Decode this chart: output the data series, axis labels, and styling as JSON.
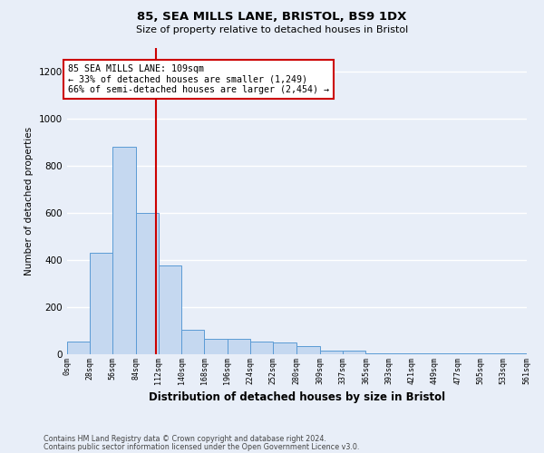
{
  "title1": "85, SEA MILLS LANE, BRISTOL, BS9 1DX",
  "title2": "Size of property relative to detached houses in Bristol",
  "xlabel": "Distribution of detached houses by size in Bristol",
  "ylabel": "Number of detached properties",
  "annotation_line1": "85 SEA MILLS LANE: 109sqm",
  "annotation_line2": "← 33% of detached houses are smaller (1,249)",
  "annotation_line3": "66% of semi-detached houses are larger (2,454) →",
  "property_size": 109,
  "bar_values": [
    55,
    430,
    880,
    600,
    375,
    105,
    65,
    65,
    55,
    50,
    35,
    15,
    15,
    5,
    5,
    2,
    2,
    2,
    2,
    2
  ],
  "bin_edges": [
    0,
    28,
    56,
    84,
    112,
    140,
    168,
    196,
    224,
    252,
    280,
    309,
    337,
    365,
    393,
    421,
    449,
    477,
    505,
    533,
    561
  ],
  "bar_color": "#c5d8f0",
  "bar_edge_color": "#5b9bd5",
  "red_line_color": "#cc0000",
  "background_color": "#e8eef8",
  "annotation_box_color": "white",
  "annotation_box_edge": "#cc0000",
  "grid_color": "white",
  "ylim": [
    0,
    1300
  ],
  "yticks": [
    0,
    200,
    400,
    600,
    800,
    1000,
    1200
  ],
  "footer1": "Contains HM Land Registry data © Crown copyright and database right 2024.",
  "footer2": "Contains public sector information licensed under the Open Government Licence v3.0."
}
